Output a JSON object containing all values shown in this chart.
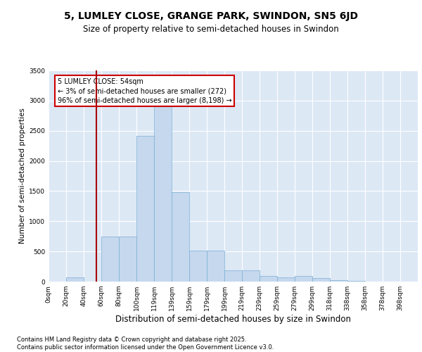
{
  "title": "5, LUMLEY CLOSE, GRANGE PARK, SWINDON, SN5 6JD",
  "subtitle": "Size of property relative to semi-detached houses in Swindon",
  "xlabel": "Distribution of semi-detached houses by size in Swindon",
  "ylabel": "Number of semi-detached properties",
  "footer_line1": "Contains HM Land Registry data © Crown copyright and database right 2025.",
  "footer_line2": "Contains public sector information licensed under the Open Government Licence v3.0.",
  "bar_labels": [
    "0sqm",
    "20sqm",
    "40sqm",
    "60sqm",
    "80sqm",
    "100sqm",
    "119sqm",
    "139sqm",
    "159sqm",
    "179sqm",
    "199sqm",
    "219sqm",
    "239sqm",
    "259sqm",
    "279sqm",
    "299sqm",
    "318sqm",
    "338sqm",
    "358sqm",
    "378sqm",
    "398sqm"
  ],
  "bar_values": [
    5,
    75,
    0,
    750,
    750,
    2420,
    2920,
    1480,
    510,
    510,
    190,
    190,
    95,
    65,
    95,
    55,
    22,
    8,
    2,
    0,
    0
  ],
  "bar_color": "#c5d8ee",
  "bar_edgecolor": "#7aafd4",
  "background_color": "#dde8f5",
  "property_sqm": 54,
  "bin_width": 20,
  "property_line_color": "#aa0000",
  "annotation_text": "5 LUMLEY CLOSE: 54sqm\n← 3% of semi-detached houses are smaller (272)\n96% of semi-detached houses are larger (8,198) →",
  "annotation_box_edgecolor": "#cc0000",
  "ylim": [
    0,
    3500
  ],
  "yticks": [
    0,
    500,
    1000,
    1500,
    2000,
    2500,
    3000,
    3500
  ],
  "title_fontsize": 10,
  "subtitle_fontsize": 8.5,
  "xlabel_fontsize": 8.5,
  "ylabel_fontsize": 7.5,
  "tick_fontsize": 6.5,
  "footer_fontsize": 6,
  "annotation_fontsize": 7
}
